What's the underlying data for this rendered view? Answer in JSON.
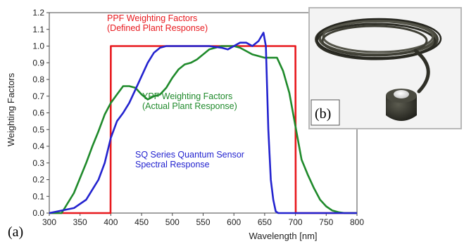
{
  "chart_data": {
    "type": "line",
    "xlabel": "Wavelength [nm]",
    "ylabel": "Weighting Factors",
    "xlim": [
      300,
      800
    ],
    "ylim": [
      0,
      1.2
    ],
    "xticks": [
      300,
      350,
      400,
      450,
      500,
      550,
      600,
      650,
      700,
      750,
      800
    ],
    "yticks": [
      0.0,
      0.1,
      0.2,
      0.3,
      0.4,
      0.5,
      0.6,
      0.7,
      0.8,
      0.9,
      1.0,
      1.1,
      1.2
    ],
    "grid": false,
    "colors": {
      "ppf": "#e8191e",
      "ypf": "#1f8a2b",
      "sq": "#2323cf"
    },
    "annotations": {
      "ppf": [
        "PPF Weighting Factors",
        "(Defined Plant Response)"
      ],
      "ypf": [
        "YPF Weighting Factors",
        "(Actual Plant Response)"
      ],
      "sq": [
        "SQ Series Quantum Sensor",
        "Spectral Response"
      ]
    },
    "series": [
      {
        "key": "ppf",
        "x": [
          300,
          399.5,
          400,
          700,
          700.5,
          800
        ],
        "y": [
          0,
          0,
          1.0,
          1.0,
          0,
          0
        ]
      },
      {
        "key": "ypf",
        "x": [
          300,
          320,
          340,
          360,
          370,
          380,
          390,
          400,
          410,
          420,
          430,
          440,
          450,
          460,
          470,
          480,
          490,
          500,
          510,
          520,
          530,
          540,
          550,
          560,
          570,
          580,
          590,
          600,
          610,
          620,
          630,
          640,
          650,
          660,
          670,
          680,
          690,
          700,
          710,
          720,
          730,
          740,
          750,
          760,
          770,
          780,
          800
        ],
        "y": [
          0,
          0.0,
          0.12,
          0.3,
          0.4,
          0.49,
          0.59,
          0.66,
          0.71,
          0.76,
          0.76,
          0.75,
          0.71,
          0.68,
          0.7,
          0.71,
          0.75,
          0.81,
          0.86,
          0.89,
          0.9,
          0.92,
          0.95,
          0.98,
          0.99,
          1.0,
          1.0,
          1.0,
          0.99,
          0.97,
          0.95,
          0.94,
          0.93,
          0.93,
          0.93,
          0.85,
          0.72,
          0.52,
          0.32,
          0.23,
          0.15,
          0.08,
          0.04,
          0.015,
          0.005,
          0,
          0
        ]
      },
      {
        "key": "sq",
        "x": [
          300,
          340,
          360,
          380,
          390,
          400,
          410,
          420,
          430,
          440,
          450,
          460,
          470,
          480,
          490,
          500,
          520,
          540,
          560,
          580,
          590,
          600,
          610,
          620,
          630,
          640,
          648,
          652,
          656,
          660,
          664,
          668,
          672,
          680,
          800
        ],
        "y": [
          0,
          0.03,
          0.08,
          0.2,
          0.3,
          0.45,
          0.55,
          0.6,
          0.66,
          0.74,
          0.82,
          0.9,
          0.96,
          0.99,
          1.0,
          1.0,
          1.0,
          1.0,
          1.0,
          0.99,
          0.98,
          1.0,
          1.02,
          1.02,
          1.0,
          1.03,
          1.08,
          1.0,
          0.5,
          0.2,
          0.08,
          0.01,
          0,
          0,
          0
        ]
      }
    ]
  },
  "panels": {
    "a": "(a)",
    "b": "(b)"
  }
}
